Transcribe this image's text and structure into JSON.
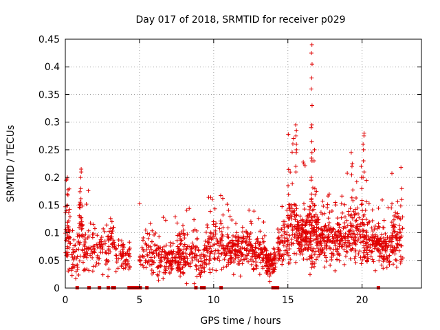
{
  "chart_data": {
    "type": "scatter",
    "title": "Day 017 of 2018, SRMTID for receiver p029",
    "xlabel": "GPS time / hours",
    "ylabel": "SRMTID / TECUs",
    "xlim": [
      0,
      24
    ],
    "ylim": [
      0,
      0.45
    ],
    "x_ticks": [
      0,
      5,
      10,
      15,
      20
    ],
    "x_tick_labels": [
      "0",
      "5",
      "10",
      "15",
      "20"
    ],
    "y_ticks": [
      0,
      0.05,
      0.1,
      0.15,
      0.2,
      0.25,
      0.3,
      0.35,
      0.4,
      0.45
    ],
    "y_tick_labels": [
      "0",
      "0.05",
      "0.1",
      "0.15",
      "0.2",
      "0.25",
      "0.3",
      "0.35",
      "0.4",
      "0.45"
    ],
    "grid": true,
    "marker": "+",
    "color": "#e00000",
    "gap_markers_x": [
      0.8,
      1.6,
      2.3,
      2.9,
      3.2,
      3.3,
      4.3,
      4.45,
      4.6,
      4.75,
      4.9,
      5.05,
      5.5,
      8.8,
      9.2,
      9.35,
      10.5,
      14.0,
      14.15,
      14.3,
      21.1
    ],
    "clusters": [
      {
        "x0": 0.0,
        "x1": 0.35,
        "center": 0.09,
        "spread": 0.04,
        "n": 50,
        "max": 0.2
      },
      {
        "x0": 0.4,
        "x1": 0.9,
        "center": 0.06,
        "spread": 0.03,
        "n": 35,
        "max": 0.12
      },
      {
        "x0": 0.9,
        "x1": 1.2,
        "center": 0.1,
        "spread": 0.05,
        "n": 35,
        "max": 0.215
      },
      {
        "x0": 1.2,
        "x1": 2.1,
        "center": 0.07,
        "spread": 0.03,
        "n": 55,
        "max": 0.195
      },
      {
        "x0": 2.1,
        "x1": 3.3,
        "center": 0.075,
        "spread": 0.03,
        "n": 70,
        "max": 0.165
      },
      {
        "x0": 3.3,
        "x1": 3.8,
        "center": 0.06,
        "spread": 0.03,
        "n": 20,
        "max": 0.155
      },
      {
        "x0": 3.8,
        "x1": 4.4,
        "center": 0.06,
        "spread": 0.02,
        "n": 40,
        "max": 0.095
      },
      {
        "x0": 5.0,
        "x1": 6.2,
        "center": 0.065,
        "spread": 0.025,
        "n": 70,
        "max": 0.165
      },
      {
        "x0": 6.2,
        "x1": 8.2,
        "center": 0.05,
        "spread": 0.02,
        "n": 140,
        "max": 0.13
      },
      {
        "x0": 7.5,
        "x1": 9.0,
        "center": 0.07,
        "spread": 0.035,
        "n": 90,
        "max": 0.155
      },
      {
        "x0": 9.0,
        "x1": 9.4,
        "center": 0.04,
        "spread": 0.02,
        "n": 25,
        "max": 0.08
      },
      {
        "x0": 9.4,
        "x1": 10.7,
        "center": 0.08,
        "spread": 0.035,
        "n": 100,
        "max": 0.17
      },
      {
        "x0": 10.7,
        "x1": 12.5,
        "center": 0.075,
        "spread": 0.025,
        "n": 160,
        "max": 0.155
      },
      {
        "x0": 12.5,
        "x1": 13.6,
        "center": 0.06,
        "spread": 0.02,
        "n": 90,
        "max": 0.14
      },
      {
        "x0": 13.5,
        "x1": 14.2,
        "center": 0.045,
        "spread": 0.015,
        "n": 80,
        "max": 0.08
      },
      {
        "x0": 14.3,
        "x1": 15.0,
        "center": 0.08,
        "spread": 0.03,
        "n": 60,
        "max": 0.17
      },
      {
        "x0": 15.0,
        "x1": 15.6,
        "center": 0.11,
        "spread": 0.05,
        "n": 70,
        "max": 0.295
      },
      {
        "x0": 15.6,
        "x1": 16.4,
        "center": 0.095,
        "spread": 0.03,
        "n": 110,
        "max": 0.24
      },
      {
        "x0": 16.4,
        "x1": 16.9,
        "center": 0.1,
        "spread": 0.04,
        "n": 80,
        "max": 0.2
      },
      {
        "x0": 16.9,
        "x1": 18.8,
        "center": 0.09,
        "spread": 0.03,
        "n": 200,
        "max": 0.18
      },
      {
        "x0": 18.8,
        "x1": 20.3,
        "center": 0.1,
        "spread": 0.04,
        "n": 150,
        "max": 0.245
      },
      {
        "x0": 20.3,
        "x1": 21.2,
        "center": 0.08,
        "spread": 0.025,
        "n": 90,
        "max": 0.155
      },
      {
        "x0": 21.2,
        "x1": 22.0,
        "center": 0.07,
        "spread": 0.025,
        "n": 70,
        "max": 0.16
      },
      {
        "x0": 22.0,
        "x1": 22.75,
        "center": 0.09,
        "spread": 0.035,
        "n": 80,
        "max": 0.22
      }
    ],
    "spikes": [
      {
        "x": 16.6,
        "values": [
          0.44,
          0.425,
          0.405,
          0.38,
          0.36,
          0.33,
          0.295,
          0.29,
          0.265,
          0.245,
          0.235,
          0.23,
          0.2,
          0.195,
          0.17,
          0.16
        ]
      },
      {
        "x": 16.8,
        "values": [
          0.25,
          0.23,
          0.18,
          0.15,
          0.13
        ]
      },
      {
        "x": 15.55,
        "values": [
          0.295,
          0.285,
          0.275,
          0.26,
          0.25,
          0.245,
          0.22,
          0.21
        ]
      },
      {
        "x": 20.1,
        "values": [
          0.28,
          0.275,
          0.26,
          0.25,
          0.23,
          0.21,
          0.2
        ]
      },
      {
        "x": 19.95,
        "values": [
          0.22,
          0.2,
          0.18
        ]
      },
      {
        "x": 19.3,
        "values": [
          0.245,
          0.225,
          0.22,
          0.205
        ]
      },
      {
        "x": 22.65,
        "values": [
          0.218,
          0.18,
          0.16
        ]
      },
      {
        "x": 1.05,
        "values": [
          0.215,
          0.21,
          0.2,
          0.18
        ]
      },
      {
        "x": 0.1,
        "values": [
          0.2,
          0.195,
          0.17
        ]
      }
    ]
  }
}
